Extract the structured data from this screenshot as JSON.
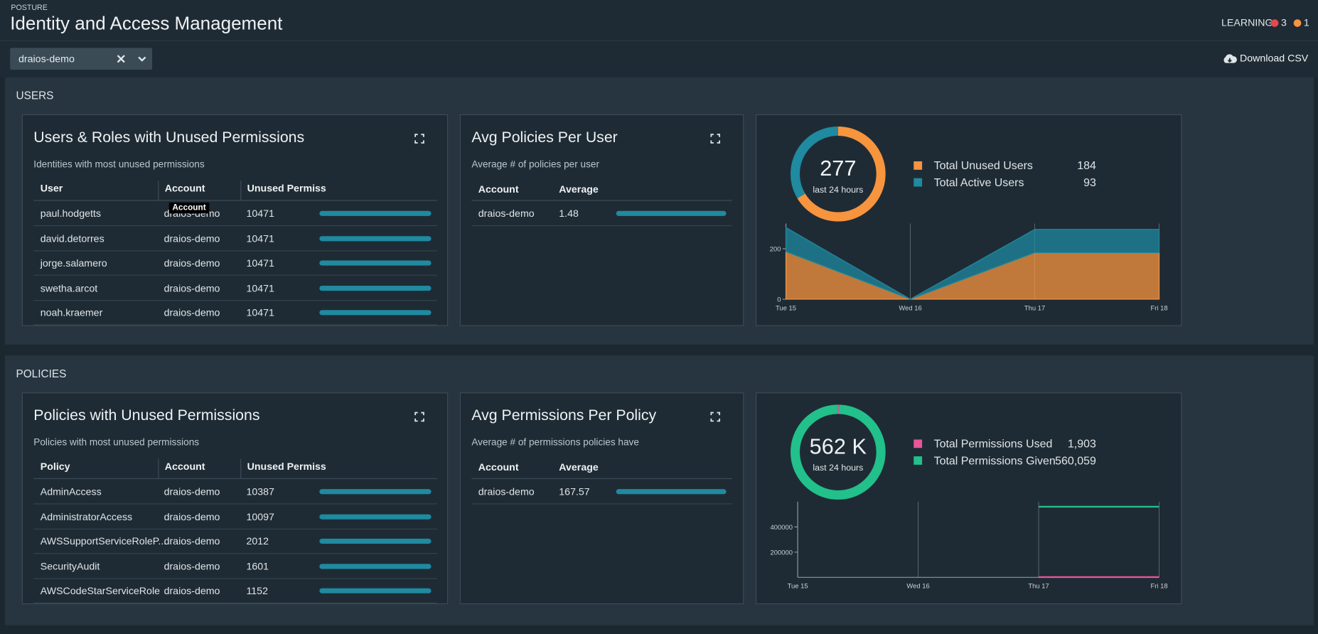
{
  "header": {
    "eyebrow": "POSTURE",
    "title": "Identity and Access Management",
    "status": "LEARNING",
    "badges": [
      {
        "count": 3,
        "color": "#e5484d"
      },
      {
        "count": 1,
        "color": "#f7943e"
      }
    ]
  },
  "filter": {
    "value": "draios-demo"
  },
  "actions": {
    "download": "Download CSV"
  },
  "sections": [
    {
      "title": "USERS",
      "table": {
        "title": "Users & Roles with Unused Permissions",
        "subtitle": "Identities with most unused permissions",
        "columns": [
          "User",
          "Account",
          "Unused Permiss"
        ],
        "tooltip": "Account",
        "rows": [
          [
            "paul.hodgetts",
            "draios-demo",
            10471
          ],
          [
            "david.detorres",
            "draios-demo",
            10471
          ],
          [
            "jorge.salamero",
            "draios-demo",
            10471
          ],
          [
            "swetha.arcot",
            "draios-demo",
            10471
          ],
          [
            "noah.kraemer",
            "draios-demo",
            10471
          ]
        ]
      },
      "average": {
        "title": "Avg Policies Per User",
        "subtitle": "Average # of policies per user",
        "columns": [
          "Account",
          "Average"
        ],
        "rows": [
          [
            "draios-demo",
            1.48
          ]
        ]
      },
      "chart_data": {
        "type": "area",
        "stacked": true,
        "center_value": 277,
        "center_caption": "last 24 hours",
        "categories": [
          "Tue 15",
          "Wed 16",
          "Thu 17",
          "Fri 18"
        ],
        "series": [
          {
            "name": "Total Unused Users",
            "color": "#f7943e",
            "total": 184,
            "values": [
              188,
              0,
              184,
              184
            ]
          },
          {
            "name": "Total Active Users",
            "color": "#1f8aa0",
            "total": 93,
            "values": [
              96,
              0,
              93,
              93
            ]
          }
        ],
        "ylim": [
          0,
          300
        ],
        "yticks": [
          0,
          200
        ]
      }
    },
    {
      "title": "POLICIES",
      "table": {
        "title": "Policies with Unused Permissions",
        "subtitle": "Policies with most unused permissions",
        "columns": [
          "Policy",
          "Account",
          "Unused Permiss"
        ],
        "rows": [
          [
            "AdminAccess",
            "draios-demo",
            10387
          ],
          [
            "AdministratorAccess",
            "draios-demo",
            10097
          ],
          [
            "AWSSupportServiceRoleP...",
            "draios-demo",
            2012
          ],
          [
            "SecurityAudit",
            "draios-demo",
            1601
          ],
          [
            "AWSCodeStarServiceRole",
            "draios-demo",
            1152
          ]
        ]
      },
      "average": {
        "title": "Avg Permissions Per Policy",
        "subtitle": "Average # of permissions policies have",
        "columns": [
          "Account",
          "Average"
        ],
        "rows": [
          [
            "draios-demo",
            167.57
          ]
        ]
      },
      "chart_data": {
        "type": "line",
        "stacked": false,
        "center_value": "562 K",
        "center_caption": "last 24 hours",
        "categories": [
          "Tue 15",
          "Wed 16",
          "Thu 17",
          "Fri 18"
        ],
        "series": [
          {
            "name": "Total Permissions Used",
            "color": "#e8559a",
            "total": {
              "value": 1903,
              "label": "1,903"
            },
            "values": [
              null,
              null,
              1903,
              1903
            ]
          },
          {
            "name": "Total Permissions Given",
            "color": "#22c08a",
            "total": {
              "value": 560059,
              "label": "560,059"
            },
            "values": [
              null,
              null,
              560059,
              560059
            ]
          }
        ],
        "ylim": [
          0,
          600000
        ],
        "yticks": [
          200000,
          400000
        ]
      }
    }
  ]
}
